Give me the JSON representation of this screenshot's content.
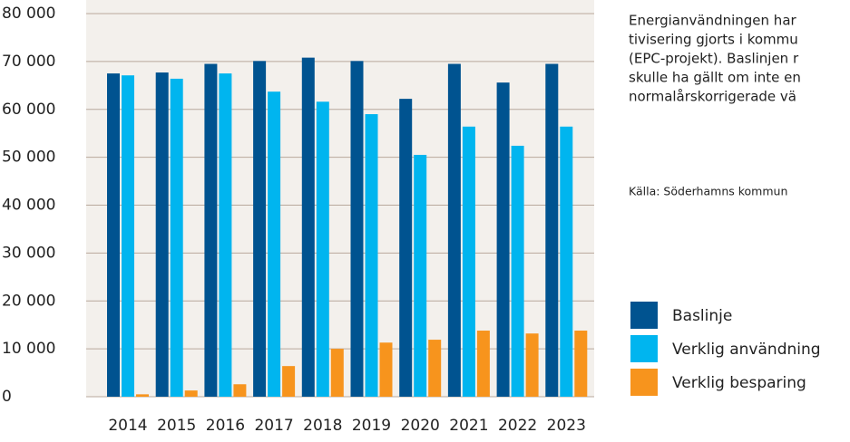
{
  "chart_data": {
    "type": "bar",
    "categories": [
      "2014",
      "2015",
      "2016",
      "2017",
      "2018",
      "2019",
      "2020",
      "2021",
      "2022",
      "2023"
    ],
    "series": [
      {
        "name": "Baslinje",
        "color": "#005390",
        "values": [
          67500,
          67700,
          69500,
          70100,
          70800,
          70100,
          62200,
          69500,
          65600,
          69500
        ]
      },
      {
        "name": "Verklig användning",
        "color": "#00b5ef",
        "values": [
          67100,
          66400,
          67500,
          63700,
          61600,
          59000,
          50500,
          56400,
          52400,
          56400
        ]
      },
      {
        "name": "Verklig besparing",
        "color": "#f7941d",
        "values": [
          500,
          1300,
          2600,
          6400,
          10000,
          11300,
          11900,
          13800,
          13200,
          13800
        ]
      }
    ],
    "ylim": [
      0,
      80000
    ],
    "yticks": [
      {
        "value": 0,
        "label": "0"
      },
      {
        "value": 10000,
        "label": "10 000"
      },
      {
        "value": 20000,
        "label": "20 000"
      },
      {
        "value": 30000,
        "label": "30 000"
      },
      {
        "value": 40000,
        "label": "40 000"
      },
      {
        "value": 50000,
        "label": "50 000"
      },
      {
        "value": 60000,
        "label": "60 000"
      },
      {
        "value": 70000,
        "label": "70 000"
      },
      {
        "value": 80000,
        "label": "80 000"
      }
    ],
    "grid": true,
    "annotation": [
      "Energianvändningen har",
      "tivisering gjorts i kommu",
      "(EPC-projekt). Baslinjen r",
      "skulle ha gällt om inte en",
      "normalårskorrigerade vä"
    ],
    "source": "Källa: Söderhamns kommun"
  }
}
